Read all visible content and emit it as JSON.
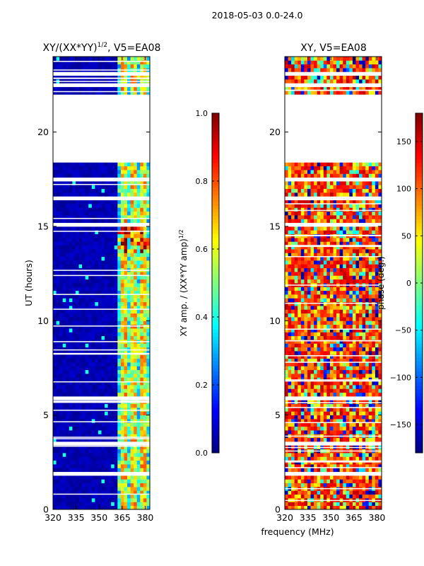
{
  "suptitle": "2018-05-03 0.0-24.0",
  "shared_xlabel": "frequency (MHz)",
  "colors": {
    "jet_stops": [
      "#00007f",
      "#0000ff",
      "#007fff",
      "#00ffff",
      "#7fff7f",
      "#ffff00",
      "#ff7f00",
      "#ff0000",
      "#7f0000"
    ],
    "axis": "#000000",
    "gap": "#ffffff"
  },
  "chart_data": [
    {
      "type": "heatmap",
      "name": "amplitude-ratio",
      "title_main": "XY/(XX*YY)",
      "title_exp": "1/2",
      "title_suffix": ", V5=EA08",
      "xlabel": "",
      "ylabel": "UT (hours)",
      "xlim": [
        320,
        383
      ],
      "ylim": [
        0,
        24
      ],
      "xticks": [
        320,
        335,
        350,
        365,
        380
      ],
      "yticks": [
        0,
        5,
        10,
        15,
        20
      ],
      "colorbar": {
        "label_main": "XY amp. / (XX*YY amp)",
        "label_exp": "1/2",
        "range": [
          0.0,
          1.0
        ],
        "ticks": [
          0.0,
          0.2,
          0.4,
          0.6,
          0.8,
          1.0
        ],
        "tick_labels": [
          "0.0",
          "0.2",
          "0.4",
          "0.6",
          "0.8",
          "1.0"
        ]
      },
      "data_gaps_hours": [
        [
          18.4,
          22.0
        ],
        [
          23.0,
          23.2
        ],
        [
          22.45,
          22.6
        ],
        [
          17.4,
          17.5
        ],
        [
          16.5,
          16.6
        ],
        [
          15.0,
          15.1
        ],
        [
          9.35,
          9.45
        ],
        [
          5.8,
          6.0
        ],
        [
          3.45,
          3.55
        ],
        [
          1.85,
          1.95
        ]
      ],
      "notes": "Values mostly 0.0-0.15 below 362 MHz; 0.3-0.9 in 362-383 MHz band"
    },
    {
      "type": "heatmap",
      "name": "phase",
      "title_main": "XY, V5=EA08",
      "xlabel": "",
      "ylabel": "",
      "xlim": [
        320,
        383
      ],
      "ylim": [
        0,
        24
      ],
      "xticks": [
        320,
        335,
        350,
        365,
        380
      ],
      "yticks": [
        0,
        5,
        10,
        15,
        20
      ],
      "colorbar": {
        "label_main": "phase (deg.)",
        "range": [
          -180,
          180
        ],
        "ticks": [
          -150,
          -100,
          -50,
          0,
          50,
          100,
          150
        ],
        "tick_labels": [
          "−150",
          "−100",
          "−50",
          "0",
          "50",
          "100",
          "150"
        ]
      },
      "data_gaps_hours": [
        [
          18.4,
          22.0
        ],
        [
          23.0,
          23.2
        ],
        [
          22.45,
          22.6
        ],
        [
          17.4,
          17.5
        ],
        [
          16.5,
          16.6
        ],
        [
          15.0,
          15.1
        ],
        [
          9.35,
          9.45
        ],
        [
          5.8,
          6.0
        ],
        [
          3.45,
          3.55
        ],
        [
          1.85,
          1.95
        ]
      ],
      "notes": "Phase mostly 80-150 deg with mixed -180..180 scatter"
    }
  ]
}
